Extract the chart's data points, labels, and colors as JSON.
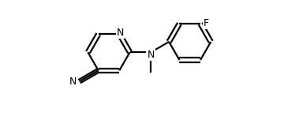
{
  "bg": "#ffffff",
  "lc": "#000000",
  "lw": 1.6,
  "fs": 9.0,
  "fig_w": 3.6,
  "fig_h": 1.47,
  "dpi": 100,
  "xlim": [
    -1.0,
    9.5
  ],
  "ylim": [
    -1.8,
    2.2
  ]
}
